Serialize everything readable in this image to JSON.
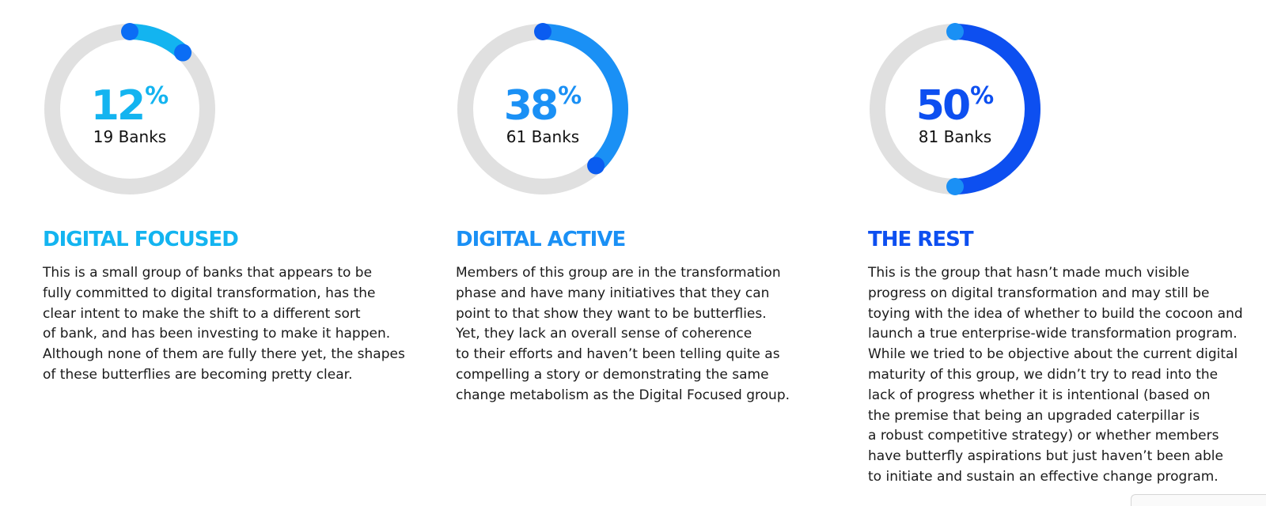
{
  "chart_data": [
    {
      "type": "donut",
      "percent": 12,
      "percent_sign": "%",
      "count_label": "19 Banks",
      "category": "DIGITAL FOCUSED",
      "color": "#13b4f0",
      "end_cap_color": "#0b6df5",
      "track_color": "#e0e0e0",
      "description": [
        "This is a small group of banks that appears to be",
        "fully committed to digital transformation, has the",
        "clear intent to make the shift to a different sort",
        "of bank, and has been investing to make it happen.",
        "Although none of them are fully there yet, the shapes",
        "of these butterflies are becoming pretty clear."
      ]
    },
    {
      "type": "donut",
      "percent": 38,
      "percent_sign": "%",
      "count_label": "61 Banks",
      "category": "DIGITAL ACTIVE",
      "color": "#1a90f5",
      "end_cap_color": "#0a5cf0",
      "track_color": "#e0e0e0",
      "description": [
        "Members of this group are in the transformation",
        "phase and have many initiatives that they can",
        "point to that show they want to be butterflies.",
        "Yet, they lack an overall sense of coherence",
        "to their efforts and haven’t been telling quite as",
        "compelling a story or demonstrating the same",
        "change metabolism as the Digital Focused group."
      ]
    },
    {
      "type": "donut",
      "percent": 50,
      "percent_sign": "%",
      "count_label": "81 Banks",
      "category": "THE REST",
      "color": "#0d4ff0",
      "end_cap_color": "#1a90f5",
      "track_color": "#e0e0e0",
      "description": [
        "This is the group that hasn’t made much visible",
        "progress on digital transformation and may still be",
        "toying with the idea of whether to build the cocoon and",
        "launch a true enterprise-wide transformation program.",
        "While we tried to be objective about the current digital",
        "maturity of this group, we didn’t try to read into the",
        "lack of progress whether it is intentional (based on",
        "the premise that being an upgraded caterpillar is",
        "a robust competitive strategy) or whether members",
        "have butterfly aspirations but just haven’t been able",
        "to initiate and sustain an effective change program."
      ]
    }
  ]
}
